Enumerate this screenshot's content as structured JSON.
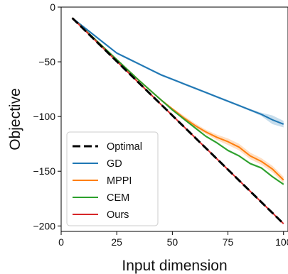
{
  "chart_data": {
    "type": "line",
    "title": "",
    "xlabel": "Input dimension",
    "ylabel": "Objective",
    "xlim": [
      0,
      102
    ],
    "ylim": [
      -205,
      0
    ],
    "xticks": [
      0,
      25,
      50,
      75,
      100
    ],
    "yticks": [
      0,
      -50,
      -100,
      -150,
      -200
    ],
    "grid": false,
    "legend_position": "lower-left",
    "series": [
      {
        "name": "Optimal",
        "color": "#000000",
        "style": "dashed",
        "x": [
          5,
          100
        ],
        "y": [
          -10,
          -198
        ]
      },
      {
        "name": "GD",
        "color": "#1f77b4",
        "style": "solid",
        "x": [
          5,
          10,
          15,
          20,
          25,
          30,
          35,
          40,
          45,
          50,
          55,
          60,
          65,
          70,
          75,
          80,
          85,
          90,
          95,
          100
        ],
        "y": [
          -10,
          -18,
          -26,
          -34,
          -42,
          -47,
          -52,
          -57,
          -62,
          -66,
          -70,
          -74,
          -78,
          -82,
          -86,
          -90,
          -94,
          -98,
          -103,
          -107
        ],
        "band": [
          1,
          1,
          1,
          1,
          1,
          1,
          1,
          1,
          1,
          1,
          1,
          1,
          1,
          1,
          1,
          1,
          1,
          1.5,
          4,
          3
        ]
      },
      {
        "name": "MPPI",
        "color": "#ff7f0e",
        "style": "solid",
        "x": [
          5,
          10,
          15,
          20,
          25,
          30,
          35,
          40,
          45,
          50,
          55,
          60,
          65,
          70,
          75,
          80,
          85,
          90,
          95,
          100
        ],
        "y": [
          -10,
          -19.5,
          -29,
          -38.5,
          -48,
          -57.5,
          -67,
          -76,
          -85,
          -93,
          -101,
          -108,
          -114,
          -119,
          -123,
          -128,
          -136,
          -141,
          -148,
          -158
        ],
        "band": [
          1,
          1,
          1,
          1,
          1,
          1,
          1,
          1,
          1,
          1,
          2,
          2,
          2,
          2.5,
          3,
          3,
          3,
          3,
          3,
          3
        ]
      },
      {
        "name": "CEM",
        "color": "#2ca02c",
        "style": "solid",
        "x": [
          5,
          10,
          15,
          20,
          25,
          30,
          35,
          40,
          45,
          50,
          55,
          60,
          65,
          70,
          75,
          80,
          85,
          90,
          95,
          100
        ],
        "y": [
          -10,
          -19.5,
          -29,
          -38.5,
          -48,
          -57.5,
          -67,
          -76,
          -85,
          -94,
          -102,
          -110,
          -118,
          -124,
          -131,
          -136,
          -143,
          -147,
          -155,
          -162
        ],
        "band": [
          0.5,
          0.5,
          0.5,
          0.5,
          0.5,
          0.5,
          0.5,
          0.5,
          0.5,
          0.5,
          1,
          1,
          1,
          1,
          1,
          1,
          1,
          1,
          1,
          1
        ]
      },
      {
        "name": "Ours",
        "color": "#d62728",
        "style": "solid",
        "x": [
          5,
          100
        ],
        "y": [
          -10,
          -198
        ]
      }
    ]
  }
}
